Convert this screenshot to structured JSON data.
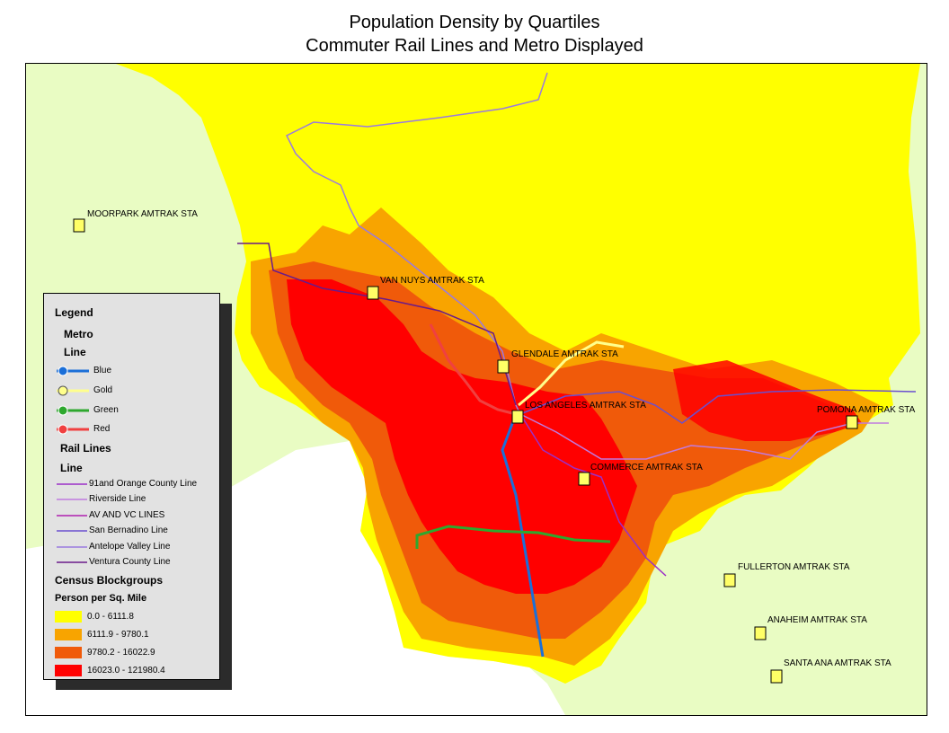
{
  "title": {
    "line1": "Population Density by Quartiles",
    "line2": "Commuter Rail Lines and Metro Displayed"
  },
  "colors": {
    "background_land": "#e9fcc3",
    "ocean": "#ffffff",
    "q1": "#ffff00",
    "q2": "#f8a400",
    "q3": "#f05a0a",
    "q4": "#ff0000",
    "metro_blue": "#1b6fd8",
    "metro_gold": "#ffff8c",
    "metro_green": "#2ea82e",
    "metro_red": "#f04040",
    "rail_purple": "#8c5cd6"
  },
  "stations": [
    {
      "name": "MOORPARK AMTRAK STA",
      "icon": "train-station-icon"
    },
    {
      "name": "VAN NUYS AMTRAK STA",
      "icon": "train-station-icon"
    },
    {
      "name": "GLENDALE AMTRAK STA",
      "icon": "train-station-icon"
    },
    {
      "name": "LOS ANGELES AMTRAK STA",
      "icon": "train-station-icon"
    },
    {
      "name": "COMMERCE AMTRAK STA",
      "icon": "train-station-icon"
    },
    {
      "name": "POMONA AMTRAK STA",
      "icon": "train-station-icon"
    },
    {
      "name": "FULLERTON AMTRAK STA",
      "icon": "train-station-icon"
    },
    {
      "name": "ANAHEIM AMTRAK STA",
      "icon": "train-station-icon"
    },
    {
      "name": "SANTA ANA AMTRAK STA",
      "icon": "train-station-icon"
    }
  ],
  "legend": {
    "title": "Legend",
    "metro_title": "Metro",
    "metro_field": "Line",
    "metro_lines": [
      {
        "label": "Blue",
        "color": "#1b6fd8"
      },
      {
        "label": "Gold",
        "color": "#ffff8c"
      },
      {
        "label": "Green",
        "color": "#2ea82e"
      },
      {
        "label": "Red",
        "color": "#f04040"
      }
    ],
    "rail_title": "Rail Lines",
    "rail_field": "Line",
    "rail_lines": [
      {
        "label": "91and Orange County Line",
        "color": "#9b2fc7"
      },
      {
        "label": "Riverside Line",
        "color": "#c07ae0"
      },
      {
        "label": "AV AND VC LINES",
        "color": "#b020b0"
      },
      {
        "label": "San Bernadino Line",
        "color": "#6a4fd0"
      },
      {
        "label": "Antelope Valley Line",
        "color": "#9a7ae0"
      },
      {
        "label": "Ventura County Line",
        "color": "#6a1a8a"
      }
    ],
    "census_title": "Census Blockgroups",
    "census_field": "Person per Sq. Mile",
    "classes": [
      {
        "label": "0.0 - 6111.8",
        "color": "#ffff00"
      },
      {
        "label": "6111.9 - 9780.1",
        "color": "#f8a400"
      },
      {
        "label": "9780.2 - 16022.9",
        "color": "#f05a0a"
      },
      {
        "label": "16023.0 - 121980.4",
        "color": "#ff0000"
      }
    ]
  }
}
